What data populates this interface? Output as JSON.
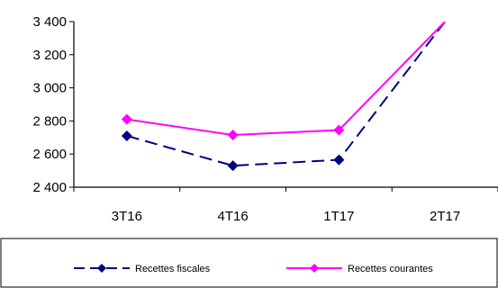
{
  "chart_data": {
    "type": "line",
    "categories": [
      "3T16",
      "4T16",
      "1T17",
      "2T17"
    ],
    "y_ticks": [
      "2 400",
      "2 600",
      "2 800",
      "3 000",
      "3 200",
      "3 400"
    ],
    "ylim": [
      2400,
      3400
    ],
    "series": [
      {
        "name": "Recettes fiscales",
        "values": [
          2710,
          2530,
          2565,
          3400
        ],
        "color": "#000080",
        "dash": "dashed",
        "marker": "diamond"
      },
      {
        "name": "Recettes courantes",
        "values": [
          2810,
          2715,
          2745,
          3400
        ],
        "color": "#ff00ff",
        "dash": "solid",
        "marker": "diamond"
      }
    ],
    "legend_position": "bottom",
    "grid": false
  }
}
